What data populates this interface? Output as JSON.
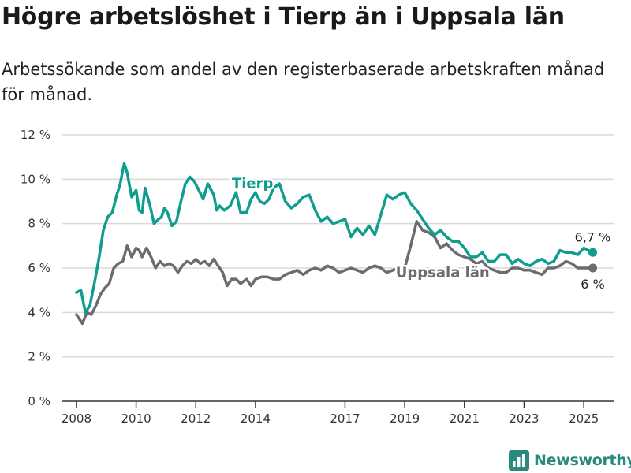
{
  "title": "Högre arbetslöshet i Tierp än i Uppsala län",
  "subtitle": "Arbetssökande som andel av den registerbaserade arbetskraften månad för månad.",
  "brand": "Newsworthy",
  "colors": {
    "tierp": "#0f9d8f",
    "uppsala": "#6b6b70",
    "grid": "#d9d9d9",
    "axis": "#333333",
    "brand": "#2b8a7e"
  },
  "chart_data": {
    "type": "line",
    "title": "Högre arbetslöshet i Tierp än i Uppsala län",
    "subtitle": "Arbetssökande som andel av den registerbaserade arbetskraften månad för månad.",
    "xlabel": "",
    "ylabel": "",
    "x_range": [
      2007.5,
      2026.0
    ],
    "ylim": [
      0,
      12
    ],
    "y_ticks": [
      0,
      2,
      4,
      6,
      8,
      10,
      12
    ],
    "y_tick_labels": [
      "0 %",
      "2 %",
      "4 %",
      "6 %",
      "8 %",
      "10 %",
      "12 %"
    ],
    "x_ticks": [
      2008,
      2010,
      2012,
      2014,
      2017,
      2019,
      2021,
      2023,
      2025
    ],
    "x_tick_labels": [
      "2008",
      "2010",
      "2012",
      "2014",
      "2017",
      "2019",
      "2021",
      "2023",
      "2025"
    ],
    "grid": "horizontal",
    "series": [
      {
        "name": "Tierp",
        "end_label": "6,7 %",
        "x": [
          2008.0,
          2008.15,
          2008.3,
          2008.45,
          2008.6,
          2008.75,
          2008.9,
          2009.05,
          2009.2,
          2009.35,
          2009.45,
          2009.6,
          2009.7,
          2009.85,
          2010.0,
          2010.1,
          2010.2,
          2010.3,
          2010.45,
          2010.6,
          2010.75,
          2010.85,
          2010.95,
          2011.05,
          2011.2,
          2011.35,
          2011.5,
          2011.65,
          2011.8,
          2011.95,
          2012.1,
          2012.25,
          2012.4,
          2012.6,
          2012.7,
          2012.8,
          2012.95,
          2013.15,
          2013.35,
          2013.5,
          2013.7,
          2013.85,
          2014.0,
          2014.15,
          2014.3,
          2014.45,
          2014.6,
          2014.8,
          2015.0,
          2015.2,
          2015.4,
          2015.6,
          2015.8,
          2016.0,
          2016.2,
          2016.4,
          2016.6,
          2016.8,
          2017.0,
          2017.2,
          2017.4,
          2017.6,
          2017.8,
          2018.0,
          2018.2,
          2018.4,
          2018.6,
          2018.8,
          2019.0,
          2019.2,
          2019.4,
          2019.6,
          2019.8,
          2020.0,
          2020.2,
          2020.4,
          2020.6,
          2020.8,
          2021.0,
          2021.2,
          2021.4,
          2021.6,
          2021.8,
          2022.0,
          2022.2,
          2022.4,
          2022.6,
          2022.8,
          2023.0,
          2023.2,
          2023.4,
          2023.6,
          2023.8,
          2024.0,
          2024.2,
          2024.4,
          2024.6,
          2024.8,
          2025.0,
          2025.15,
          2025.3
        ],
        "values": [
          4.9,
          5.0,
          4.0,
          4.3,
          5.3,
          6.4,
          7.7,
          8.3,
          8.5,
          9.3,
          9.7,
          10.7,
          10.3,
          9.2,
          9.5,
          8.6,
          8.5,
          9.6,
          8.9,
          8.0,
          8.2,
          8.3,
          8.7,
          8.5,
          7.9,
          8.1,
          9.0,
          9.8,
          10.1,
          9.9,
          9.5,
          9.1,
          9.8,
          9.3,
          8.6,
          8.8,
          8.6,
          8.8,
          9.4,
          8.5,
          8.5,
          9.1,
          9.4,
          9.0,
          8.9,
          9.1,
          9.6,
          9.8,
          9.0,
          8.7,
          8.9,
          9.2,
          9.3,
          8.6,
          8.1,
          8.3,
          8.0,
          8.1,
          8.2,
          7.4,
          7.8,
          7.5,
          7.9,
          7.5,
          8.4,
          9.3,
          9.1,
          9.3,
          9.4,
          8.9,
          8.6,
          8.2,
          7.8,
          7.5,
          7.7,
          7.4,
          7.2,
          7.2,
          6.9,
          6.5,
          6.5,
          6.7,
          6.3,
          6.3,
          6.6,
          6.6,
          6.2,
          6.4,
          6.2,
          6.1,
          6.3,
          6.4,
          6.2,
          6.3,
          6.8,
          6.7,
          6.7,
          6.6,
          6.9,
          6.8,
          6.7
        ]
      },
      {
        "name": "Uppsala län",
        "end_label": "6 %",
        "x": [
          2008.0,
          2008.2,
          2008.35,
          2008.5,
          2008.65,
          2008.8,
          2008.95,
          2009.1,
          2009.25,
          2009.4,
          2009.55,
          2009.7,
          2009.85,
          2010.0,
          2010.1,
          2010.2,
          2010.35,
          2010.5,
          2010.65,
          2010.8,
          2010.95,
          2011.1,
          2011.25,
          2011.4,
          2011.55,
          2011.7,
          2011.85,
          2012.0,
          2012.15,
          2012.3,
          2012.45,
          2012.6,
          2012.75,
          2012.9,
          2013.05,
          2013.2,
          2013.35,
          2013.5,
          2013.7,
          2013.85,
          2014.0,
          2014.2,
          2014.4,
          2014.6,
          2014.8,
          2015.0,
          2015.2,
          2015.4,
          2015.6,
          2015.8,
          2016.0,
          2016.2,
          2016.4,
          2016.6,
          2016.8,
          2017.0,
          2017.2,
          2017.4,
          2017.6,
          2017.8,
          2018.0,
          2018.2,
          2018.4,
          2018.6,
          2018.8,
          2019.0,
          2019.2,
          2019.4,
          2019.6,
          2019.8,
          2020.0,
          2020.2,
          2020.4,
          2020.6,
          2020.8,
          2021.0,
          2021.2,
          2021.4,
          2021.6,
          2021.8,
          2022.0,
          2022.2,
          2022.4,
          2022.6,
          2022.8,
          2023.0,
          2023.2,
          2023.4,
          2023.6,
          2023.8,
          2024.0,
          2024.2,
          2024.4,
          2024.6,
          2024.8,
          2025.0,
          2025.15,
          2025.3
        ],
        "values": [
          3.9,
          3.5,
          4.0,
          3.9,
          4.3,
          4.8,
          5.1,
          5.3,
          6.0,
          6.2,
          6.3,
          7.0,
          6.5,
          6.9,
          6.8,
          6.5,
          6.9,
          6.5,
          6.0,
          6.3,
          6.1,
          6.2,
          6.1,
          5.8,
          6.1,
          6.3,
          6.2,
          6.4,
          6.2,
          6.3,
          6.1,
          6.4,
          6.1,
          5.8,
          5.2,
          5.5,
          5.5,
          5.3,
          5.5,
          5.2,
          5.5,
          5.6,
          5.6,
          5.5,
          5.5,
          5.7,
          5.8,
          5.9,
          5.7,
          5.9,
          6.0,
          5.9,
          6.1,
          6.0,
          5.8,
          5.9,
          6.0,
          5.9,
          5.8,
          6.0,
          6.1,
          6.0,
          5.8,
          5.9,
          6.0,
          6.0,
          7.0,
          8.1,
          7.7,
          7.6,
          7.4,
          6.9,
          7.1,
          6.8,
          6.6,
          6.5,
          6.4,
          6.2,
          6.3,
          6.0,
          5.9,
          5.8,
          5.8,
          6.0,
          6.0,
          5.9,
          5.9,
          5.8,
          5.7,
          6.0,
          6.0,
          6.1,
          6.3,
          6.2,
          6.0,
          6.0,
          6.0,
          6.0
        ]
      }
    ],
    "annotations": [
      {
        "series": "Tierp",
        "text": "Tierp",
        "x": 2013.9,
        "y": 9.6
      },
      {
        "series": "Uppsala län",
        "text": "Uppsala län",
        "x": 2018.7,
        "y": 5.6
      }
    ]
  }
}
